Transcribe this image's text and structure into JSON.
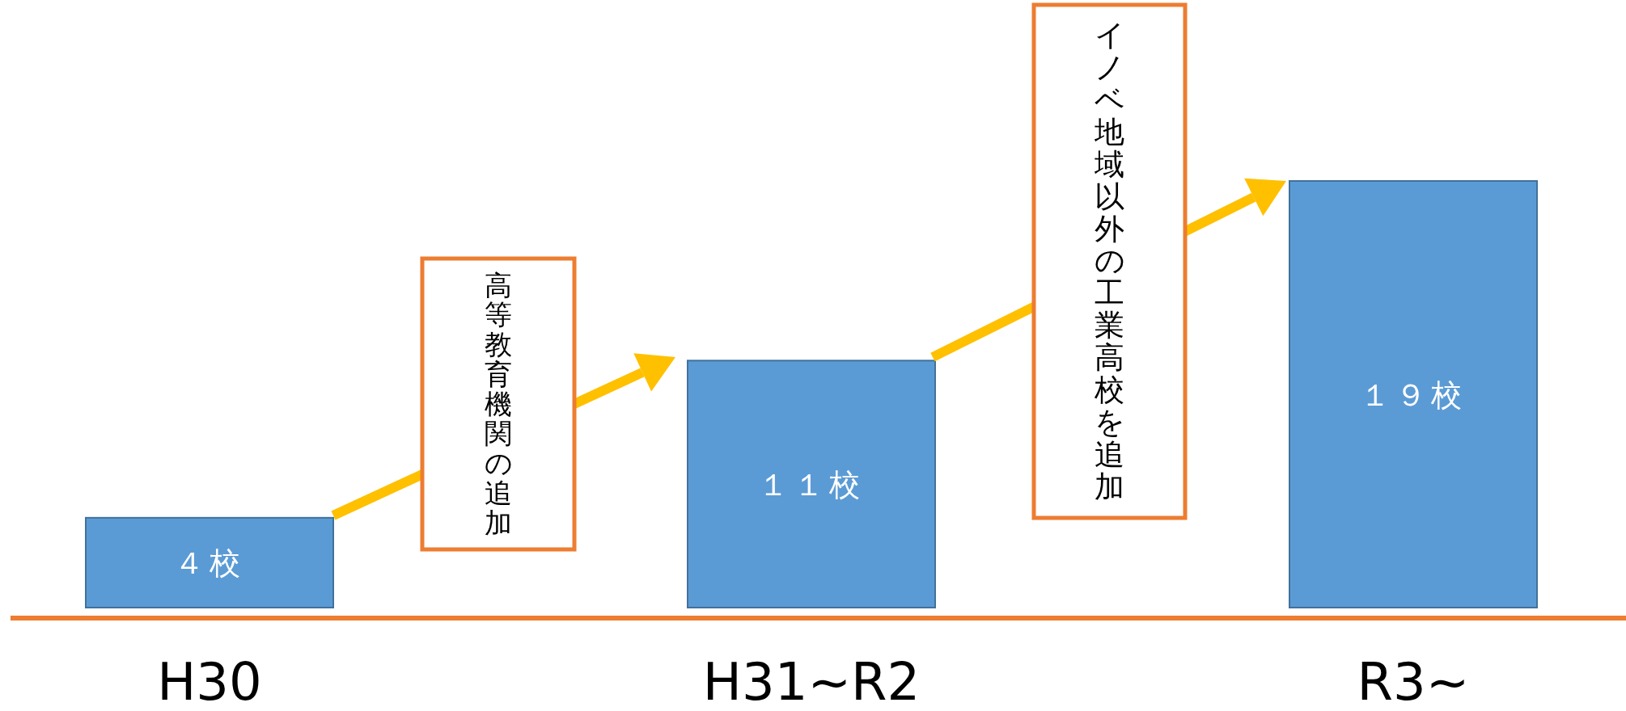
{
  "chart_data": {
    "type": "bar",
    "categories": [
      "H30",
      "H31~R2",
      "R3~"
    ],
    "values": [
      4,
      11,
      19
    ],
    "value_labels": [
      "４校",
      "１１校",
      "１９校"
    ],
    "color": "#5b9bd5",
    "annotations": [
      "高等教育機関の追加",
      "イノベ地域以外の工業高校を追加"
    ]
  }
}
